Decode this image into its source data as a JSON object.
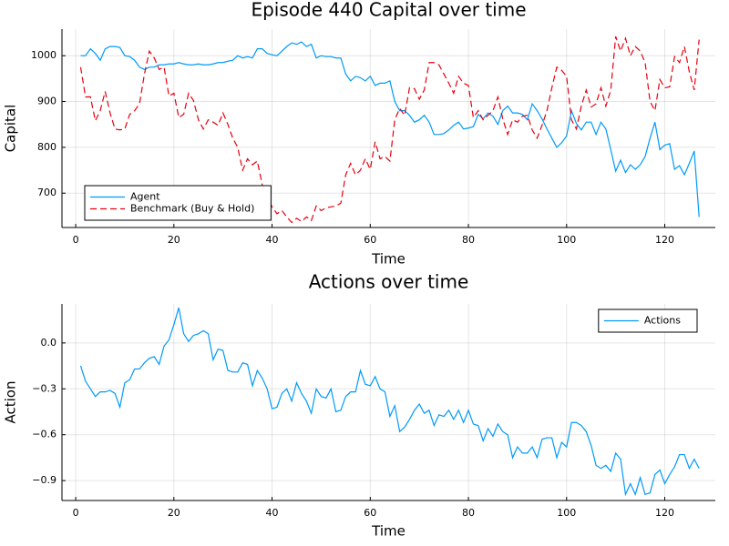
{
  "chart_data": [
    {
      "type": "line",
      "title": "Episode 440 Capital over time",
      "x_label": "Time",
      "y_label": "Capital",
      "x": [
        1,
        2,
        3,
        4,
        5,
        6,
        7,
        8,
        9,
        10,
        11,
        12,
        13,
        14,
        15,
        16,
        17,
        18,
        19,
        20,
        21,
        22,
        23,
        24,
        25,
        26,
        27,
        28,
        29,
        30,
        31,
        32,
        33,
        34,
        35,
        36,
        37,
        38,
        39,
        40,
        41,
        42,
        43,
        44,
        45,
        46,
        47,
        48,
        49,
        50,
        51,
        52,
        53,
        54,
        55,
        56,
        57,
        58,
        59,
        60,
        61,
        62,
        63,
        64,
        65,
        66,
        67,
        68,
        69,
        70,
        71,
        72,
        73,
        74,
        75,
        76,
        77,
        78,
        79,
        80,
        81,
        82,
        83,
        84,
        85,
        86,
        87,
        88,
        89,
        90,
        91,
        92,
        93,
        94,
        95,
        96,
        97,
        98,
        99,
        100,
        101,
        102,
        103,
        104,
        105,
        106,
        107,
        108,
        109,
        110,
        111,
        112,
        113,
        114,
        115,
        116,
        117,
        118,
        119,
        120,
        121,
        122,
        123,
        124,
        125,
        126,
        127
      ],
      "series": [
        {
          "name": "Agent",
          "color": "#009af9",
          "line_style": "solid",
          "values": [
            1000,
            1000,
            1015,
            1005,
            990,
            1015,
            1020,
            1020,
            1018,
            1000,
            998,
            990,
            975,
            970,
            975,
            975,
            980,
            980,
            982,
            982,
            985,
            982,
            980,
            980,
            982,
            980,
            980,
            982,
            985,
            985,
            988,
            990,
            1000,
            995,
            998,
            995,
            1015,
            1015,
            1005,
            1002,
            1000,
            1010,
            1020,
            1028,
            1025,
            1030,
            1020,
            1025,
            995,
            1000,
            998,
            998,
            995,
            995,
            960,
            945,
            955,
            952,
            945,
            955,
            935,
            940,
            940,
            945,
            900,
            880,
            880,
            870,
            855,
            860,
            870,
            855,
            828,
            828,
            830,
            838,
            848,
            855,
            840,
            842,
            845,
            872,
            862,
            875,
            868,
            850,
            880,
            890,
            875,
            875,
            872,
            860,
            895,
            880,
            862,
            840,
            820,
            800,
            810,
            825,
            880,
            852,
            838,
            855,
            855,
            828,
            855,
            840,
            795,
            748,
            772,
            745,
            762,
            752,
            762,
            780,
            820,
            855,
            795,
            805,
            808,
            752,
            760,
            740,
            765,
            792,
            648
          ]
        },
        {
          "name": "Benchmark (Buy & Hold)",
          "color": "#e6000f",
          "line_style": "dash",
          "values": [
            975,
            910,
            910,
            858,
            880,
            922,
            875,
            840,
            838,
            840,
            872,
            880,
            895,
            960,
            1010,
            995,
            970,
            975,
            912,
            918,
            865,
            872,
            918,
            902,
            860,
            840,
            860,
            855,
            848,
            875,
            850,
            820,
            800,
            750,
            775,
            762,
            770,
            718,
            690,
            670,
            655,
            662,
            648,
            636,
            645,
            638,
            648,
            640,
            672,
            662,
            668,
            670,
            672,
            678,
            740,
            765,
            740,
            750,
            775,
            752,
            812,
            775,
            780,
            770,
            860,
            885,
            870,
            930,
            928,
            905,
            925,
            985,
            985,
            980,
            960,
            940,
            918,
            955,
            940,
            935,
            865,
            880,
            860,
            870,
            880,
            910,
            862,
            828,
            860,
            855,
            868,
            870,
            838,
            820,
            848,
            880,
            930,
            975,
            968,
            955,
            860,
            840,
            890,
            925,
            888,
            895,
            930,
            890,
            925,
            1042,
            1010,
            1038,
            1000,
            1020,
            1010,
            985,
            900,
            880,
            948,
            930,
            932,
            998,
            985,
            1020,
            965,
            925,
            1035
          ]
        }
      ],
      "xlim": [
        -2.8,
        130.3
      ],
      "xticks": [
        0,
        20,
        40,
        60,
        80,
        100,
        120
      ],
      "ylim": [
        625,
        1058
      ],
      "yticks": [
        700,
        800,
        900,
        1000
      ],
      "grid": true,
      "legend": "lower left"
    },
    {
      "type": "line",
      "title": "Actions over time",
      "x_label": "Time",
      "y_label": "Action",
      "x": [
        1,
        2,
        3,
        4,
        5,
        6,
        7,
        8,
        9,
        10,
        11,
        12,
        13,
        14,
        15,
        16,
        17,
        18,
        19,
        20,
        21,
        22,
        23,
        24,
        25,
        26,
        27,
        28,
        29,
        30,
        31,
        32,
        33,
        34,
        35,
        36,
        37,
        38,
        39,
        40,
        41,
        42,
        43,
        44,
        45,
        46,
        47,
        48,
        49,
        50,
        51,
        52,
        53,
        54,
        55,
        56,
        57,
        58,
        59,
        60,
        61,
        62,
        63,
        64,
        65,
        66,
        67,
        68,
        69,
        70,
        71,
        72,
        73,
        74,
        75,
        76,
        77,
        78,
        79,
        80,
        81,
        82,
        83,
        84,
        85,
        86,
        87,
        88,
        89,
        90,
        91,
        92,
        93,
        94,
        95,
        96,
        97,
        98,
        99,
        100,
        101,
        102,
        103,
        104,
        105,
        106,
        107,
        108,
        109,
        110,
        111,
        112,
        113,
        114,
        115,
        116,
        117,
        118,
        119,
        120,
        121,
        122,
        123,
        124,
        125,
        126,
        127
      ],
      "series": [
        {
          "name": "Actions",
          "color": "#009af9",
          "line_style": "solid",
          "values": [
            -0.15,
            -0.25,
            -0.3,
            -0.35,
            -0.32,
            -0.32,
            -0.31,
            -0.33,
            -0.42,
            -0.26,
            -0.24,
            -0.17,
            -0.17,
            -0.13,
            -0.1,
            -0.09,
            -0.14,
            -0.02,
            0.02,
            0.12,
            0.23,
            0.06,
            0.01,
            0.05,
            0.06,
            0.08,
            0.06,
            -0.11,
            -0.04,
            -0.05,
            -0.18,
            -0.19,
            -0.19,
            -0.13,
            -0.14,
            -0.28,
            -0.18,
            -0.23,
            -0.3,
            -0.43,
            -0.42,
            -0.33,
            -0.3,
            -0.38,
            -0.26,
            -0.33,
            -0.38,
            -0.46,
            -0.3,
            -0.35,
            -0.36,
            -0.3,
            -0.45,
            -0.44,
            -0.35,
            -0.32,
            -0.32,
            -0.18,
            -0.27,
            -0.28,
            -0.22,
            -0.3,
            -0.32,
            -0.48,
            -0.41,
            -0.58,
            -0.55,
            -0.5,
            -0.44,
            -0.4,
            -0.46,
            -0.44,
            -0.54,
            -0.47,
            -0.48,
            -0.44,
            -0.5,
            -0.44,
            -0.52,
            -0.44,
            -0.53,
            -0.54,
            -0.64,
            -0.56,
            -0.61,
            -0.53,
            -0.58,
            -0.6,
            -0.75,
            -0.68,
            -0.72,
            -0.72,
            -0.68,
            -0.75,
            -0.63,
            -0.62,
            -0.62,
            -0.75,
            -0.65,
            -0.68,
            -0.52,
            -0.52,
            -0.54,
            -0.58,
            -0.67,
            -0.8,
            -0.82,
            -0.8,
            -0.84,
            -0.72,
            -0.76,
            -0.99,
            -0.92,
            -0.99,
            -0.88,
            -0.99,
            -0.98,
            -0.86,
            -0.83,
            -0.92,
            -0.86,
            -0.81,
            -0.73,
            -0.73,
            -0.82,
            -0.76,
            -0.82
          ]
        }
      ],
      "xlim": [
        -2.8,
        130.3
      ],
      "xticks": [
        0,
        20,
        40,
        60,
        80,
        100,
        120
      ],
      "ylim": [
        -1.03,
        0.255
      ],
      "yticks": [
        {
          "value": 0,
          "label": "0.0"
        },
        {
          "value": -0.3,
          "label": "−0.3"
        },
        {
          "value": -0.6,
          "label": "−0.6"
        },
        {
          "value": -0.9,
          "label": "−0.9"
        }
      ],
      "grid": true,
      "legend": "upper right"
    }
  ]
}
